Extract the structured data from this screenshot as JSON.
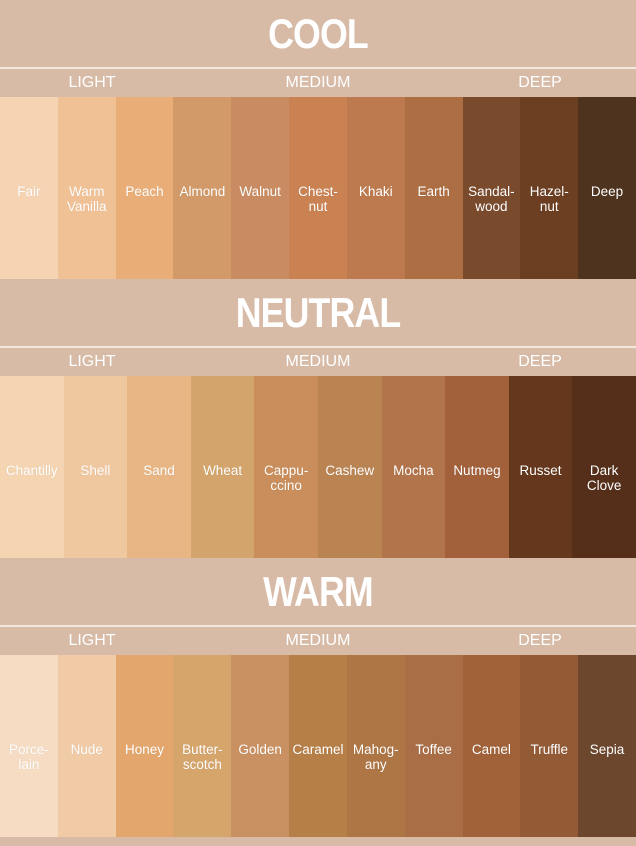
{
  "levels": {
    "light": "LIGHT",
    "medium": "MEDIUM",
    "deep": "DEEP"
  },
  "sections": [
    {
      "title": "COOL",
      "swatches": [
        {
          "label": "Fair",
          "color": "#f5d3b3"
        },
        {
          "label": "Warm\nVanilla",
          "color": "#f1c196"
        },
        {
          "label": "Peach",
          "color": "#e9ae78"
        },
        {
          "label": "Almond",
          "color": "#d29a69"
        },
        {
          "label": "Walnut",
          "color": "#c98c62"
        },
        {
          "label": "Chest-\nnut",
          "color": "#ca8253"
        },
        {
          "label": "Khaki",
          "color": "#bd7a4e"
        },
        {
          "label": "Earth",
          "color": "#ac6e42"
        },
        {
          "label": "Sandal-\nwood",
          "color": "#7a4a2c"
        },
        {
          "label": "Hazel-\nnut",
          "color": "#6c3e22"
        },
        {
          "label": "Deep",
          "color": "#4e331f"
        }
      ]
    },
    {
      "title": "NEUTRAL",
      "swatches": [
        {
          "label": "Chantilly",
          "color": "#f4d4b1"
        },
        {
          "label": "Shell",
          "color": "#f0c8a0"
        },
        {
          "label": "Sand",
          "color": "#e8b585"
        },
        {
          "label": "Wheat",
          "color": "#d3a46b"
        },
        {
          "label": "Cappu-\nccino",
          "color": "#c98e5b"
        },
        {
          "label": "Cashew",
          "color": "#ba8352"
        },
        {
          "label": "Mocha",
          "color": "#b2744a"
        },
        {
          "label": "Nutmeg",
          "color": "#a2603b"
        },
        {
          "label": "Russet",
          "color": "#65371c"
        },
        {
          "label": "Dark\nClove",
          "color": "#552f1a"
        }
      ]
    },
    {
      "title": "WARM",
      "swatches": [
        {
          "label": "Porce-\nlain",
          "color": "#f5dcc3"
        },
        {
          "label": "Nude",
          "color": "#f0cba6"
        },
        {
          "label": "Honey",
          "color": "#e3a76e"
        },
        {
          "label": "Butter-\nscotch",
          "color": "#d5a56c"
        },
        {
          "label": "Golden",
          "color": "#c99161"
        },
        {
          "label": "Caramel",
          "color": "#b57f47"
        },
        {
          "label": "Mahog-\nany",
          "color": "#ae7645"
        },
        {
          "label": "Toffee",
          "color": "#aa6e46"
        },
        {
          "label": "Camel",
          "color": "#a1623a"
        },
        {
          "label": "Truffle",
          "color": "#935a36"
        },
        {
          "label": "Sepia",
          "color": "#6c462d"
        }
      ]
    }
  ]
}
